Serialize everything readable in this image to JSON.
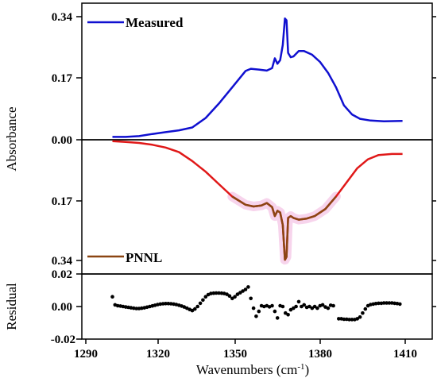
{
  "chart_data": [
    {
      "panel": "top",
      "type": "line",
      "legend": "Measured",
      "color": "#1010d0",
      "ylabel": "Absorbance",
      "yticks": [
        "0.00",
        "0.17",
        "0.34"
      ],
      "ylim": [
        0,
        0.37
      ],
      "xlim": [
        1290,
        1415
      ],
      "points": [
        [
          1300,
          0.008
        ],
        [
          1305,
          0.008
        ],
        [
          1310,
          0.01
        ],
        [
          1315,
          0.016
        ],
        [
          1320,
          0.021
        ],
        [
          1325,
          0.026
        ],
        [
          1330,
          0.034
        ],
        [
          1335,
          0.06
        ],
        [
          1340,
          0.1
        ],
        [
          1345,
          0.145
        ],
        [
          1350,
          0.19
        ],
        [
          1352,
          0.196
        ],
        [
          1355,
          0.194
        ],
        [
          1358,
          0.191
        ],
        [
          1360,
          0.198
        ],
        [
          1361,
          0.225
        ],
        [
          1362,
          0.21
        ],
        [
          1363,
          0.22
        ],
        [
          1364,
          0.262
        ],
        [
          1364.8,
          0.335
        ],
        [
          1365.4,
          0.33
        ],
        [
          1366,
          0.24
        ],
        [
          1367,
          0.228
        ],
        [
          1368,
          0.23
        ],
        [
          1370,
          0.245
        ],
        [
          1372,
          0.245
        ],
        [
          1375,
          0.235
        ],
        [
          1378,
          0.215
        ],
        [
          1381,
          0.185
        ],
        [
          1384,
          0.145
        ],
        [
          1387,
          0.095
        ],
        [
          1390,
          0.07
        ],
        [
          1393,
          0.058
        ],
        [
          1397,
          0.053
        ],
        [
          1402,
          0.051
        ],
        [
          1409,
          0.052
        ]
      ]
    },
    {
      "panel": "middle",
      "type": "line",
      "legend": "PNNL",
      "color": "#e01818",
      "overlap_color": "#8b4513",
      "overlap_x_range": [
        1344,
        1385
      ],
      "ylabel": "Absorbance",
      "yticks": [
        "0.00",
        "0.17",
        "0.34"
      ],
      "ylim": [
        0,
        0.36
      ],
      "ylim_inverted": true,
      "xlim": [
        1290,
        1415
      ],
      "points": [
        [
          1300,
          0.004
        ],
        [
          1305,
          0.006
        ],
        [
          1310,
          0.009
        ],
        [
          1315,
          0.014
        ],
        [
          1320,
          0.022
        ],
        [
          1325,
          0.035
        ],
        [
          1330,
          0.06
        ],
        [
          1335,
          0.09
        ],
        [
          1340,
          0.125
        ],
        [
          1345,
          0.16
        ],
        [
          1350,
          0.183
        ],
        [
          1353,
          0.188
        ],
        [
          1356,
          0.185
        ],
        [
          1358,
          0.178
        ],
        [
          1360,
          0.19
        ],
        [
          1361,
          0.215
        ],
        [
          1362,
          0.2
        ],
        [
          1363,
          0.205
        ],
        [
          1364,
          0.24
        ],
        [
          1364.8,
          0.338
        ],
        [
          1365.4,
          0.33
        ],
        [
          1366,
          0.22
        ],
        [
          1367,
          0.215
        ],
        [
          1368,
          0.22
        ],
        [
          1370,
          0.225
        ],
        [
          1373,
          0.222
        ],
        [
          1376,
          0.215
        ],
        [
          1380,
          0.195
        ],
        [
          1384,
          0.16
        ],
        [
          1388,
          0.12
        ],
        [
          1392,
          0.08
        ],
        [
          1396,
          0.055
        ],
        [
          1400,
          0.043
        ],
        [
          1405,
          0.04
        ],
        [
          1409,
          0.04
        ]
      ]
    },
    {
      "panel": "bottom",
      "type": "scatter",
      "color": "#000000",
      "ylabel": "Residual",
      "yticks": [
        "0.02",
        "0.00",
        "-0.02"
      ],
      "ylim": [
        -0.02,
        0.02
      ],
      "xlabel": "Wavenumbers (cm",
      "xlabel_sup": "-1",
      "xlabel_close": ")",
      "xticks": [
        "1290",
        "1320",
        "1350",
        "1380",
        "1410"
      ],
      "xlim": [
        1290,
        1415
      ],
      "points": [
        [
          1300,
          0.006
        ],
        [
          1301,
          0.001
        ],
        [
          1302,
          0.0005
        ],
        [
          1303,
          0.0003
        ],
        [
          1304,
          0.0
        ],
        [
          1305,
          -0.0003
        ],
        [
          1306,
          -0.0005
        ],
        [
          1307,
          -0.0008
        ],
        [
          1308,
          -0.001
        ],
        [
          1309,
          -0.0012
        ],
        [
          1310,
          -0.0012
        ],
        [
          1311,
          -0.001
        ],
        [
          1312,
          -0.0008
        ],
        [
          1313,
          -0.0004
        ],
        [
          1314,
          0.0
        ],
        [
          1315,
          0.0004
        ],
        [
          1316,
          0.0008
        ],
        [
          1317,
          0.0012
        ],
        [
          1318,
          0.0015
        ],
        [
          1319,
          0.0017
        ],
        [
          1320,
          0.0018
        ],
        [
          1321,
          0.0018
        ],
        [
          1322,
          0.0017
        ],
        [
          1323,
          0.0015
        ],
        [
          1324,
          0.0012
        ],
        [
          1325,
          0.0008
        ],
        [
          1326,
          0.0003
        ],
        [
          1327,
          -0.0003
        ],
        [
          1328,
          -0.001
        ],
        [
          1329,
          -0.0018
        ],
        [
          1330,
          -0.0025
        ],
        [
          1331,
          -0.0015
        ],
        [
          1332,
          0.0
        ],
        [
          1333,
          0.002
        ],
        [
          1334,
          0.004
        ],
        [
          1335,
          0.006
        ],
        [
          1336,
          0.0073
        ],
        [
          1337,
          0.008
        ],
        [
          1338,
          0.0082
        ],
        [
          1339,
          0.0083
        ],
        [
          1340,
          0.0083
        ],
        [
          1341,
          0.0082
        ],
        [
          1342,
          0.008
        ],
        [
          1343,
          0.0075
        ],
        [
          1344,
          0.0065
        ],
        [
          1345,
          0.005
        ],
        [
          1346,
          0.006
        ],
        [
          1347,
          0.0075
        ],
        [
          1348,
          0.0085
        ],
        [
          1349,
          0.0095
        ],
        [
          1350,
          0.0105
        ],
        [
          1351,
          0.012
        ],
        [
          1352,
          0.005
        ],
        [
          1353,
          -0.001
        ],
        [
          1354,
          -0.006
        ],
        [
          1355,
          -0.003
        ],
        [
          1356,
          0.0005
        ],
        [
          1357,
          0.0
        ],
        [
          1358,
          0.0005
        ],
        [
          1359,
          -0.0002
        ],
        [
          1360,
          0.0005
        ],
        [
          1361,
          -0.003
        ],
        [
          1362,
          -0.007
        ],
        [
          1363,
          0.0005
        ],
        [
          1364,
          0.0
        ],
        [
          1365,
          -0.004
        ],
        [
          1366,
          -0.005
        ],
        [
          1367,
          -0.002
        ],
        [
          1368,
          -0.001
        ],
        [
          1369,
          0.0
        ],
        [
          1370,
          0.003
        ],
        [
          1371,
          0.0
        ],
        [
          1372,
          0.001
        ],
        [
          1373,
          -0.0005
        ],
        [
          1374,
          0.0
        ],
        [
          1375,
          -0.001
        ],
        [
          1376,
          0.0
        ],
        [
          1377,
          -0.001
        ],
        [
          1378,
          0.0005
        ],
        [
          1379,
          0.001
        ],
        [
          1380,
          -0.0003
        ],
        [
          1381,
          -0.001
        ],
        [
          1382,
          0.0008
        ],
        [
          1383,
          0.0005
        ],
        [
          1385,
          -0.0075
        ],
        [
          1386,
          -0.0075
        ],
        [
          1387,
          -0.0078
        ],
        [
          1388,
          -0.0078
        ],
        [
          1389,
          -0.008
        ],
        [
          1390,
          -0.008
        ],
        [
          1391,
          -0.008
        ],
        [
          1392,
          -0.0075
        ],
        [
          1393,
          -0.0065
        ],
        [
          1394,
          -0.004
        ],
        [
          1395,
          -0.0015
        ],
        [
          1396,
          0.0005
        ],
        [
          1397,
          0.0012
        ],
        [
          1398,
          0.0015
        ],
        [
          1399,
          0.0018
        ],
        [
          1400,
          0.002
        ],
        [
          1401,
          0.002
        ],
        [
          1402,
          0.0022
        ],
        [
          1403,
          0.0022
        ],
        [
          1404,
          0.0022
        ],
        [
          1405,
          0.0022
        ],
        [
          1406,
          0.002
        ],
        [
          1407,
          0.0018
        ],
        [
          1408,
          0.0015
        ]
      ]
    }
  ]
}
